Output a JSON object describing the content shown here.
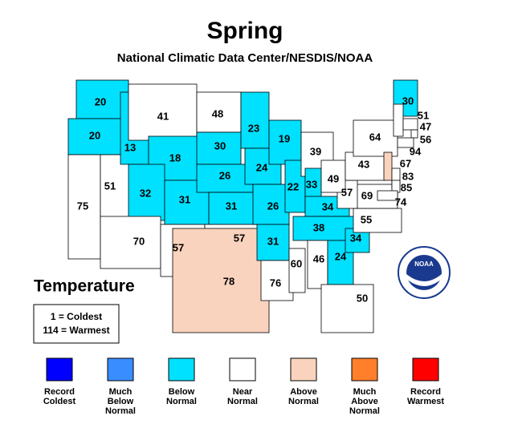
{
  "header": {
    "title": "Spring",
    "subtitle": "National Climatic Data Center/NESDIS/NOAA"
  },
  "map": {
    "label": "Temperature",
    "key": [
      "1 = Coldest",
      "114 = Warmest"
    ],
    "logo": "NOAA",
    "states": [
      {
        "rank": 20,
        "color": "#00e0ff"
      },
      {
        "rank": 20,
        "color": "#00e0ff"
      },
      {
        "rank": 75,
        "color": "#ffffff"
      },
      {
        "rank": 51,
        "color": "#ffffff"
      },
      {
        "rank": 13,
        "color": "#00e0ff"
      },
      {
        "rank": 41,
        "color": "#ffffff"
      },
      {
        "rank": 18,
        "color": "#00e0ff"
      },
      {
        "rank": 32,
        "color": "#00e0ff"
      },
      {
        "rank": 70,
        "color": "#ffffff"
      },
      {
        "rank": 31,
        "color": "#00e0ff"
      },
      {
        "rank": 57,
        "color": "#ffffff"
      },
      {
        "rank": 48,
        "color": "#ffffff"
      },
      {
        "rank": 30,
        "color": "#00e0ff"
      },
      {
        "rank": 26,
        "color": "#00e0ff"
      },
      {
        "rank": 31,
        "color": "#00e0ff"
      },
      {
        "rank": 57,
        "color": "#ffffff"
      },
      {
        "rank": 78,
        "color": "#f9d3bd"
      },
      {
        "rank": 23,
        "color": "#00e0ff"
      },
      {
        "rank": 24,
        "color": "#00e0ff"
      },
      {
        "rank": 26,
        "color": "#00e0ff"
      },
      {
        "rank": 31,
        "color": "#00e0ff"
      },
      {
        "rank": 76,
        "color": "#ffffff"
      },
      {
        "rank": 19,
        "color": "#00e0ff"
      },
      {
        "rank": 22,
        "color": "#00e0ff"
      },
      {
        "rank": 60,
        "color": "#ffffff"
      },
      {
        "rank": 39,
        "color": "#ffffff"
      },
      {
        "rank": 33,
        "color": "#00e0ff"
      },
      {
        "rank": 34,
        "color": "#00e0ff"
      },
      {
        "rank": 38,
        "color": "#00e0ff"
      },
      {
        "rank": 46,
        "color": "#ffffff"
      },
      {
        "rank": 24,
        "color": "#00e0ff"
      },
      {
        "rank": 50,
        "color": "#ffffff"
      },
      {
        "rank": 34,
        "color": "#00e0ff"
      },
      {
        "rank": 55,
        "color": "#ffffff"
      },
      {
        "rank": 69,
        "color": "#ffffff"
      },
      {
        "rank": 57,
        "color": "#ffffff"
      },
      {
        "rank": 49,
        "color": "#ffffff"
      },
      {
        "rank": 43,
        "color": "#ffffff"
      },
      {
        "rank": 64,
        "color": "#ffffff"
      },
      {
        "rank": 30,
        "color": "#00e0ff"
      },
      {
        "rank": 51,
        "color": "#ffffff"
      },
      {
        "rank": 47,
        "color": "#ffffff"
      },
      {
        "rank": 56,
        "color": "#ffffff"
      },
      {
        "rank": 94,
        "color": "#ffffff"
      },
      {
        "rank": 67,
        "color": "#f9d3bd"
      },
      {
        "rank": 83,
        "color": "#ffffff"
      },
      {
        "rank": 85,
        "color": "#ffffff"
      },
      {
        "rank": 74,
        "color": "#ffffff"
      }
    ]
  },
  "legend": [
    {
      "lines": [
        "Record",
        "Coldest"
      ],
      "color": "#0000ff"
    },
    {
      "lines": [
        "Much",
        "Below",
        "Normal"
      ],
      "color": "#3a8dff"
    },
    {
      "lines": [
        "Below",
        "Normal"
      ],
      "color": "#00e0ff"
    },
    {
      "lines": [
        "Near",
        "Normal"
      ],
      "color": "#ffffff"
    },
    {
      "lines": [
        "Above",
        "Normal"
      ],
      "color": "#f9d3bd"
    },
    {
      "lines": [
        "Much",
        "Above",
        "Normal"
      ],
      "color": "#ff7f2a"
    },
    {
      "lines": [
        "Record",
        "Warmest"
      ],
      "color": "#ff0000"
    }
  ]
}
